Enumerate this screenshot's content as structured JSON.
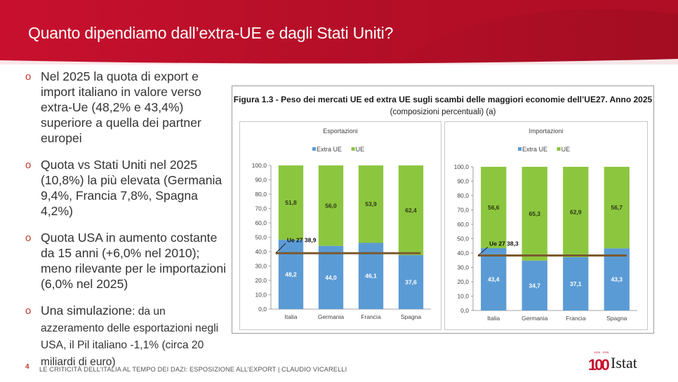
{
  "slide": {
    "title": "Quanto dipendiamo dall’extra-UE e dagli Stati Uniti?",
    "page_number": "4",
    "footer": "LE CRITICITÀ DELL’ITALIA AL TEMPO DEI DAZI: ESPOSIZIONE ALL’EXPORT | CLAUDIO VICARELLI",
    "logo_text": "Istat",
    "logo_number": "100",
    "logo_years": "1926 · 2026",
    "brand_color": "#c8102e"
  },
  "bullets": [
    {
      "bullet": "o",
      "text": "Nel 2025 la quota di export e import  italiano in valore verso extra-Ue (48,2% e 43,4%) superiore a quella dei partner europei"
    },
    {
      "bullet": "o",
      "text": "Quota vs Stati Uniti nel 2025 (10,8%) la più elevata (Germania 9,4%, Francia 7,8%, Spagna 4,2%)"
    },
    {
      "bullet": "o",
      "text": "Quota USA in aumento costante da 15 anni (+6,0% nel 2010); meno rilevante per le importazioni (6,0% nel 2025)"
    },
    {
      "bullet": "o",
      "text_lead": "Una simulazione",
      "text": ": da un azzeramento delle esportazioni negli USA, il Pil italiano -1,1% (circa 20 miliardi di euro)"
    }
  ],
  "figure": {
    "title": "Figura 1.3 - Peso dei mercati UE ed extra UE sugli scambi delle maggiori economie dell’UE27. Anno 2025",
    "subtitle": "(composizioni percentuali) (a)"
  },
  "chart_data": [
    {
      "type": "bar",
      "stacked": true,
      "title": "Esportazioni",
      "categories": [
        "Italia",
        "Germania",
        "Francia",
        "Spagna"
      ],
      "series": [
        {
          "name": "Extra UE",
          "color": "#5b9bd5",
          "values": [
            48.2,
            44.0,
            46.1,
            37.6
          ],
          "labels": [
            "48,2",
            "44,0",
            "46,1",
            "37,6"
          ]
        },
        {
          "name": "UE",
          "color": "#8cc63f",
          "values": [
            51.8,
            56.0,
            53.9,
            62.4
          ],
          "labels": [
            "51,8",
            "56,0",
            "53,9",
            "62,4"
          ]
        }
      ],
      "reference_line": {
        "label": "Ue 27 38,9",
        "value": 38.9,
        "color": "#7b5a2e"
      },
      "ylim": [
        0,
        100
      ],
      "yticks": [
        0,
        10,
        20,
        30,
        40,
        50,
        60,
        70,
        80,
        90,
        100
      ],
      "ytick_labels": [
        "0,0",
        "10,0",
        "20,0",
        "30,0",
        "40,0",
        "50,0",
        "60,0",
        "70,0",
        "80,0",
        "90,0",
        "100,0"
      ],
      "legend": "top-center"
    },
    {
      "type": "bar",
      "stacked": true,
      "title": "Importazioni",
      "categories": [
        "Italia",
        "Germania",
        "Francia",
        "Spagna"
      ],
      "series": [
        {
          "name": "Extra UE",
          "color": "#5b9bd5",
          "values": [
            43.4,
            34.7,
            37.1,
            43.3
          ],
          "labels": [
            "43,4",
            "34,7",
            "37,1",
            "43,3"
          ]
        },
        {
          "name": "UE",
          "color": "#8cc63f",
          "values": [
            56.6,
            65.3,
            62.9,
            56.7
          ],
          "labels": [
            "56,6",
            "65,3",
            "62,9",
            "56,7"
          ]
        }
      ],
      "reference_line": {
        "label": "Ue 27 38,3",
        "value": 38.3,
        "color": "#7b5a2e"
      },
      "ylim": [
        0,
        100
      ],
      "yticks": [
        0,
        10,
        20,
        30,
        40,
        50,
        60,
        70,
        80,
        90,
        100
      ],
      "ytick_labels": [
        "0,0",
        "10,0",
        "20,0",
        "30,0",
        "40,0",
        "50,0",
        "60,0",
        "70,0",
        "80,0",
        "90,0",
        "100,0"
      ],
      "legend": "top-center"
    }
  ]
}
